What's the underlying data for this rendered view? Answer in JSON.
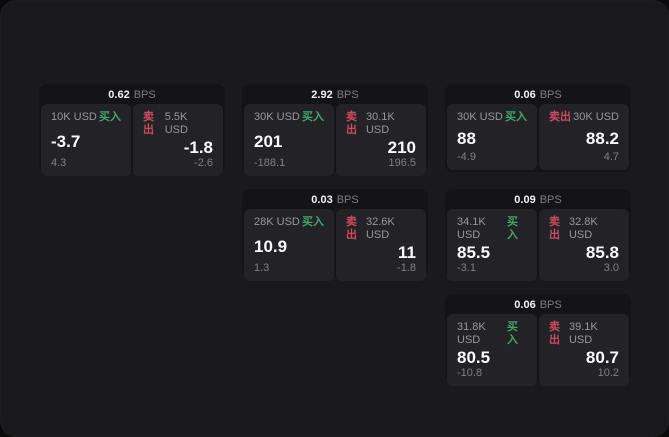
{
  "labels": {
    "bps_unit": "BPS",
    "buy_tag": "买入",
    "sell_tag": "卖出"
  },
  "colors": {
    "background": "#0a0a0a",
    "window": "#1a1a1c",
    "card": "#141416",
    "panel": "#232327",
    "text_primary": "#fafafa",
    "text_secondary": "#98989c",
    "buy_green": "#42a566",
    "sell_red": "#cc4a5e"
  },
  "cards": [
    {
      "grid": {
        "row": 1,
        "col": 1
      },
      "bps": "0.62",
      "buy": {
        "amount": "10K USD",
        "value": "-3.7",
        "sub": "4.3"
      },
      "sell": {
        "amount": "5.5K USD",
        "value": "-1.8",
        "sub": "-2.6"
      }
    },
    {
      "grid": {
        "row": 1,
        "col": 2
      },
      "bps": "2.92",
      "buy": {
        "amount": "30K USD",
        "value": "201",
        "sub": "-188.1"
      },
      "sell": {
        "amount": "30.1K USD",
        "value": "210",
        "sub": "196.5"
      }
    },
    {
      "grid": {
        "row": 1,
        "col": 3
      },
      "bps": "0.06",
      "buy": {
        "amount": "30K USD",
        "value": "88",
        "sub": "-4.9"
      },
      "sell": {
        "amount": "30K USD",
        "value": "88.2",
        "sub": "4.7"
      }
    },
    {
      "grid": {
        "row": 2,
        "col": 2
      },
      "bps": "0.03",
      "buy": {
        "amount": "28K USD",
        "value": "10.9",
        "sub": "1.3"
      },
      "sell": {
        "amount": "32.6K USD",
        "value": "11",
        "sub": "-1.8"
      }
    },
    {
      "grid": {
        "row": 2,
        "col": 3
      },
      "bps": "0.09",
      "buy": {
        "amount": "34.1K USD",
        "value": "85.5",
        "sub": "-3.1"
      },
      "sell": {
        "amount": "32.8K USD",
        "value": "85.8",
        "sub": "3.0"
      }
    },
    {
      "grid": {
        "row": 3,
        "col": 3
      },
      "bps": "0.06",
      "buy": {
        "amount": "31.8K USD",
        "value": "80.5",
        "sub": "-10.8"
      },
      "sell": {
        "amount": "39.1K USD",
        "value": "80.7",
        "sub": "10.2"
      }
    }
  ]
}
